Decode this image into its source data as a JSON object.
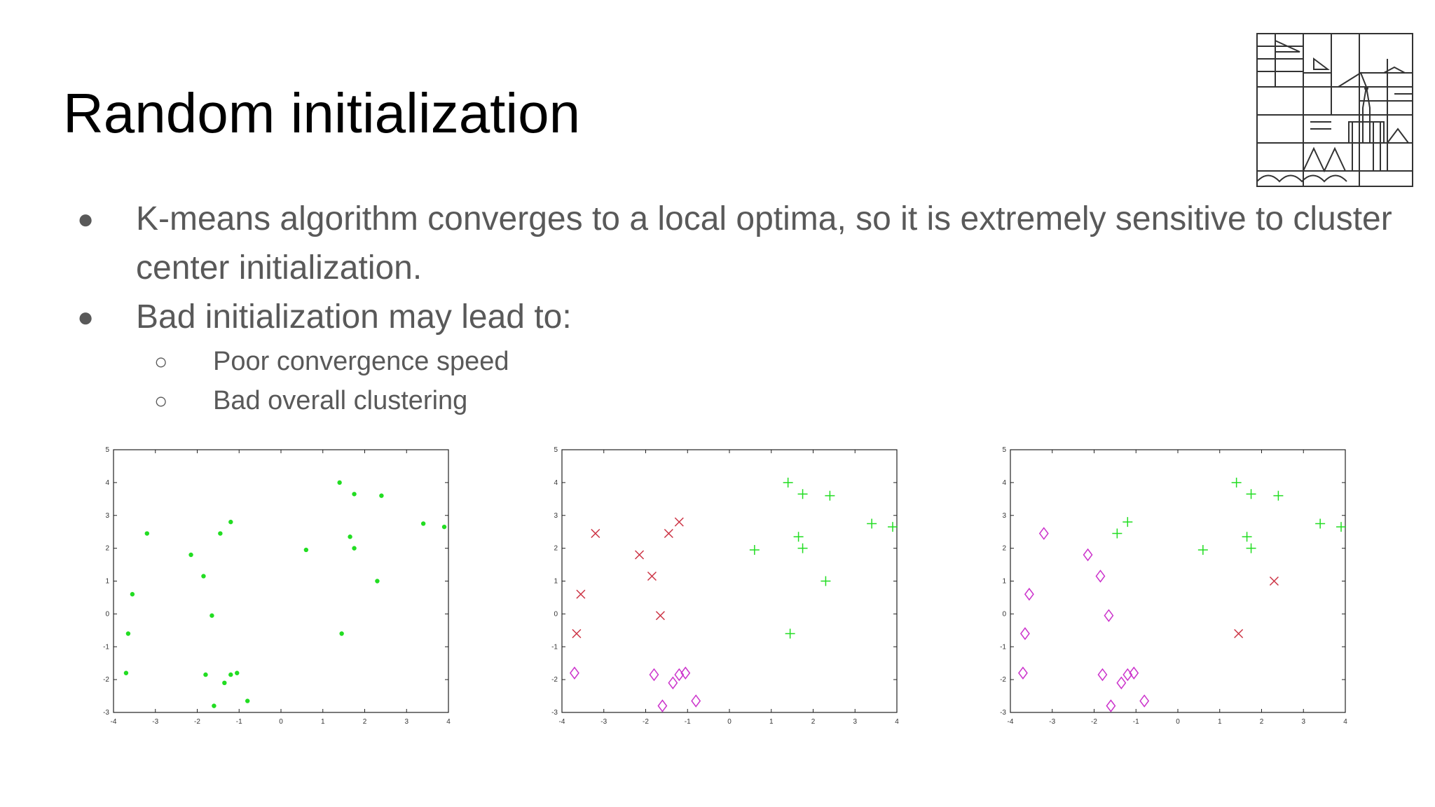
{
  "slide": {
    "title": "Random initialization",
    "bullets": [
      {
        "text": "K-means algorithm converges to a local optima, so it is extremely sensitive to cluster center initialization."
      },
      {
        "text": "Bad initialization may lead to:"
      }
    ],
    "sub_bullets": [
      {
        "text": "Poor convergence speed"
      },
      {
        "text": "Bad overall clustering"
      }
    ],
    "bullet_glyph": "●",
    "sub_bullet_glyph": "○"
  },
  "logo": {
    "icon": "university-building-logo-icon"
  },
  "colors": {
    "green": "#22dd22",
    "red": "#cc3344",
    "magenta": "#cc33cc"
  },
  "chart_data": [
    {
      "type": "scatter",
      "xlim": [
        -4,
        4
      ],
      "ylim": [
        -3,
        5
      ],
      "xticks": [
        -4,
        -3,
        -2,
        -1,
        0,
        1,
        2,
        3,
        4
      ],
      "yticks": [
        -3,
        -2,
        -1,
        0,
        1,
        2,
        3,
        4,
        5
      ],
      "grid": false,
      "series": [
        {
          "marker": "dot",
          "color": "#22dd22",
          "points": [
            [
              -3.2,
              2.45
            ],
            [
              -3.55,
              0.6
            ],
            [
              -3.65,
              -0.6
            ],
            [
              -3.7,
              -1.8
            ],
            [
              -2.15,
              1.8
            ],
            [
              -1.85,
              1.15
            ],
            [
              -1.65,
              -0.05
            ],
            [
              -1.45,
              2.45
            ],
            [
              -1.2,
              2.8
            ],
            [
              -1.8,
              -1.85
            ],
            [
              -1.35,
              -2.1
            ],
            [
              -1.2,
              -1.85
            ],
            [
              -1.05,
              -1.8
            ],
            [
              -1.6,
              -2.8
            ],
            [
              -0.8,
              -2.65
            ],
            [
              0.6,
              1.95
            ],
            [
              1.4,
              4.0
            ],
            [
              1.75,
              3.65
            ],
            [
              2.4,
              3.6
            ],
            [
              1.65,
              2.35
            ],
            [
              1.75,
              2.0
            ],
            [
              2.3,
              1.0
            ],
            [
              1.45,
              -0.6
            ],
            [
              3.4,
              2.75
            ],
            [
              3.9,
              2.65
            ]
          ]
        }
      ]
    },
    {
      "type": "scatter",
      "xlim": [
        -4,
        4
      ],
      "ylim": [
        -3,
        5
      ],
      "xticks": [
        -4,
        -3,
        -2,
        -1,
        0,
        1,
        2,
        3,
        4
      ],
      "yticks": [
        -3,
        -2,
        -1,
        0,
        1,
        2,
        3,
        4,
        5
      ],
      "grid": false,
      "series": [
        {
          "marker": "x",
          "color": "#cc3344",
          "points": [
            [
              -3.2,
              2.45
            ],
            [
              -3.55,
              0.6
            ],
            [
              -3.65,
              -0.6
            ],
            [
              -2.15,
              1.8
            ],
            [
              -1.85,
              1.15
            ],
            [
              -1.65,
              -0.05
            ],
            [
              -1.45,
              2.45
            ],
            [
              -1.2,
              2.8
            ]
          ]
        },
        {
          "marker": "plus",
          "color": "#22dd22",
          "points": [
            [
              0.6,
              1.95
            ],
            [
              1.4,
              4.0
            ],
            [
              1.75,
              3.65
            ],
            [
              2.4,
              3.6
            ],
            [
              1.65,
              2.35
            ],
            [
              1.75,
              2.0
            ],
            [
              2.3,
              1.0
            ],
            [
              1.45,
              -0.6
            ],
            [
              3.4,
              2.75
            ],
            [
              3.9,
              2.65
            ]
          ]
        },
        {
          "marker": "diamond",
          "color": "#cc33cc",
          "points": [
            [
              -3.7,
              -1.8
            ],
            [
              -1.8,
              -1.85
            ],
            [
              -1.35,
              -2.1
            ],
            [
              -1.2,
              -1.85
            ],
            [
              -1.05,
              -1.8
            ],
            [
              -1.6,
              -2.8
            ],
            [
              -0.8,
              -2.65
            ]
          ]
        }
      ]
    },
    {
      "type": "scatter",
      "xlim": [
        -4,
        4
      ],
      "ylim": [
        -3,
        5
      ],
      "xticks": [
        -4,
        -3,
        -2,
        -1,
        0,
        1,
        2,
        3,
        4
      ],
      "yticks": [
        -3,
        -2,
        -1,
        0,
        1,
        2,
        3,
        4,
        5
      ],
      "grid": false,
      "series": [
        {
          "marker": "diamond",
          "color": "#cc33cc",
          "points": [
            [
              -3.2,
              2.45
            ],
            [
              -3.55,
              0.6
            ],
            [
              -3.65,
              -0.6
            ],
            [
              -3.7,
              -1.8
            ],
            [
              -2.15,
              1.8
            ],
            [
              -1.85,
              1.15
            ],
            [
              -1.65,
              -0.05
            ],
            [
              -1.8,
              -1.85
            ],
            [
              -1.35,
              -2.1
            ],
            [
              -1.2,
              -1.85
            ],
            [
              -1.05,
              -1.8
            ],
            [
              -1.6,
              -2.8
            ],
            [
              -0.8,
              -2.65
            ]
          ]
        },
        {
          "marker": "plus",
          "color": "#22dd22",
          "points": [
            [
              -1.45,
              2.45
            ],
            [
              -1.2,
              2.8
            ],
            [
              0.6,
              1.95
            ],
            [
              1.4,
              4.0
            ],
            [
              1.75,
              3.65
            ],
            [
              2.4,
              3.6
            ],
            [
              1.65,
              2.35
            ],
            [
              1.75,
              2.0
            ],
            [
              3.4,
              2.75
            ],
            [
              3.9,
              2.65
            ]
          ]
        },
        {
          "marker": "x",
          "color": "#cc3344",
          "points": [
            [
              2.3,
              1.0
            ],
            [
              1.45,
              -0.6
            ]
          ]
        }
      ]
    }
  ]
}
